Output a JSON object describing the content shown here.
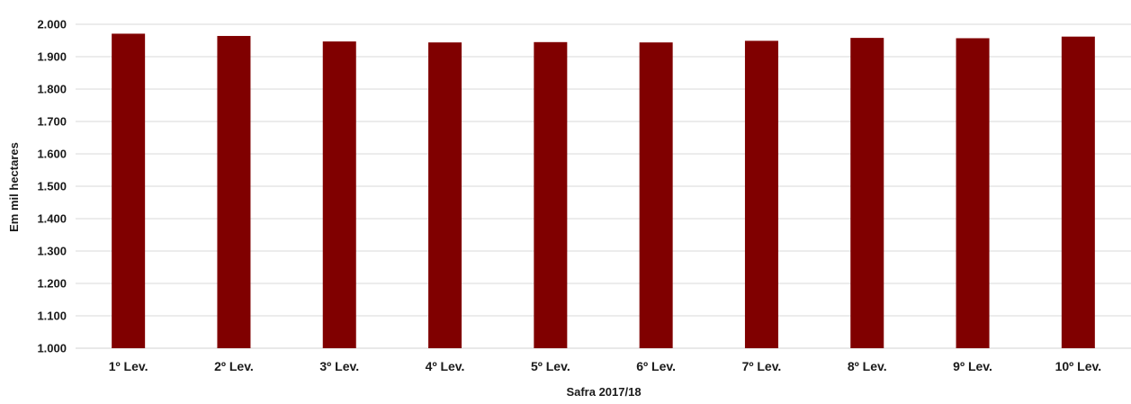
{
  "chart_data": {
    "type": "bar",
    "title": "",
    "xlabel": "Safra 2017/18",
    "ylabel": "Em mil hectares",
    "categories": [
      "1º Lev.",
      "2º Lev.",
      "3º Lev.",
      "4º Lev.",
      "5º Lev.",
      "6º Lev.",
      "7º Lev.",
      "8º Lev.",
      "9º Lev.",
      "10º Lev."
    ],
    "values": [
      1971,
      1964,
      1947,
      1944,
      1945,
      1944,
      1949,
      1958,
      1957,
      1962
    ],
    "ylim": [
      1000,
      2000
    ],
    "yticks": [
      1000,
      1100,
      1200,
      1300,
      1400,
      1500,
      1600,
      1700,
      1800,
      1900,
      2000
    ],
    "ytick_labels": [
      "1.000",
      "1.100",
      "1.200",
      "1.300",
      "1.400",
      "1.500",
      "1.600",
      "1.700",
      "1.800",
      "1.900",
      "2.000"
    ],
    "grid": true,
    "legend": "none",
    "bar_color": "#800000",
    "grid_color": "#d9d9d9"
  }
}
